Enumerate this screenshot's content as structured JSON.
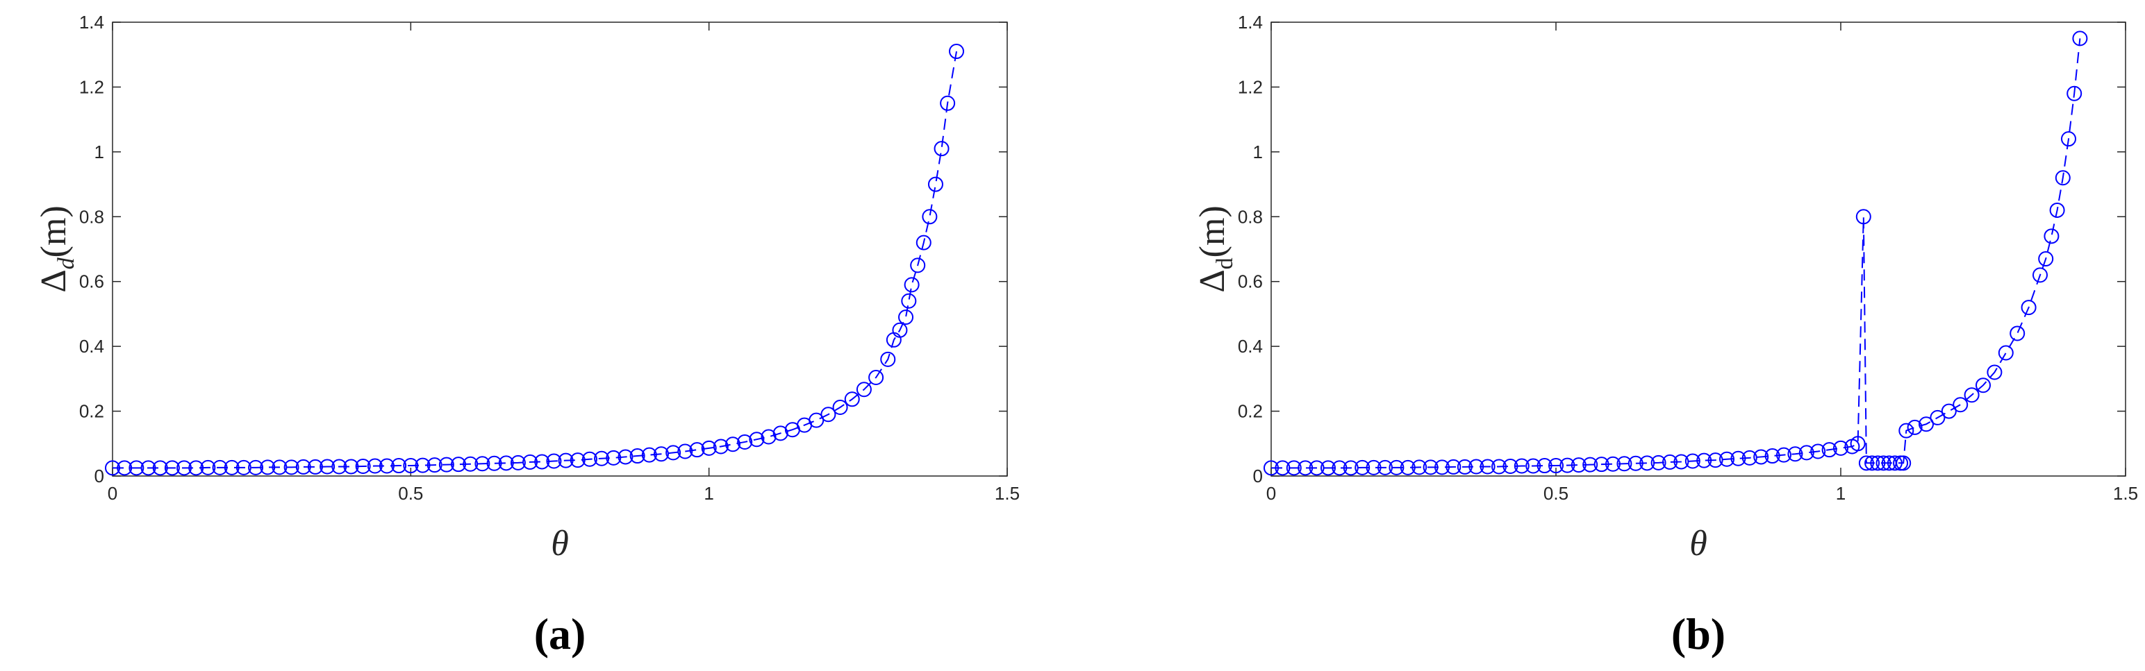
{
  "chart_data": [
    {
      "type": "line",
      "color": "#0000ff",
      "line_style": "dashed",
      "marker": "circle",
      "xlabel": "θ",
      "ylabel": [
        "Δ",
        "d",
        "(m)"
      ],
      "caption": "(a)",
      "xlim": [
        0,
        1.5
      ],
      "ylim": [
        0,
        1.4
      ],
      "xticks": [
        0,
        0.5,
        1,
        1.5
      ],
      "yticks": [
        0,
        0.2,
        0.4,
        0.6,
        0.8,
        1,
        1.2,
        1.4
      ],
      "x": [
        0,
        0.02,
        0.04,
        0.06,
        0.08,
        0.1,
        0.12,
        0.14,
        0.16,
        0.18,
        0.2,
        0.22,
        0.24,
        0.26,
        0.28,
        0.3,
        0.32,
        0.34,
        0.36,
        0.38,
        0.4,
        0.42,
        0.44,
        0.46,
        0.48,
        0.5,
        0.52,
        0.54,
        0.56,
        0.58,
        0.6,
        0.62,
        0.64,
        0.66,
        0.68,
        0.7,
        0.72,
        0.74,
        0.76,
        0.78,
        0.8,
        0.82,
        0.84,
        0.86,
        0.88,
        0.9,
        0.92,
        0.94,
        0.96,
        0.98,
        1,
        1.02,
        1.04,
        1.06,
        1.08,
        1.1,
        1.12,
        1.14,
        1.16,
        1.18,
        1.2,
        1.22,
        1.24,
        1.26,
        1.28,
        1.3,
        1.31,
        1.32,
        1.33,
        1.335,
        1.34,
        1.35,
        1.36,
        1.37,
        1.38,
        1.39,
        1.4,
        1.415
      ],
      "values": [
        0.025,
        0.025,
        0.025,
        0.025,
        0.025,
        0.025,
        0.025,
        0.025,
        0.026,
        0.026,
        0.026,
        0.026,
        0.026,
        0.027,
        0.027,
        0.027,
        0.028,
        0.028,
        0.029,
        0.029,
        0.029,
        0.03,
        0.031,
        0.031,
        0.032,
        0.032,
        0.033,
        0.034,
        0.035,
        0.036,
        0.037,
        0.038,
        0.039,
        0.04,
        0.041,
        0.043,
        0.044,
        0.046,
        0.048,
        0.049,
        0.052,
        0.054,
        0.056,
        0.059,
        0.062,
        0.065,
        0.068,
        0.072,
        0.076,
        0.081,
        0.086,
        0.091,
        0.098,
        0.105,
        0.113,
        0.121,
        0.132,
        0.143,
        0.157,
        0.172,
        0.19,
        0.212,
        0.237,
        0.267,
        0.304,
        0.36,
        0.42,
        0.45,
        0.49,
        0.54,
        0.59,
        0.65,
        0.72,
        0.8,
        0.9,
        1.01,
        1.15,
        1.31
      ]
    },
    {
      "type": "line",
      "color": "#0000ff",
      "line_style": "dashed",
      "marker": "circle",
      "xlabel": "θ",
      "ylabel": [
        "Δ",
        "d",
        "(m)"
      ],
      "caption": "(b)",
      "xlim": [
        0,
        1.5
      ],
      "ylim": [
        0,
        1.4
      ],
      "xticks": [
        0,
        0.5,
        1,
        1.5
      ],
      "yticks": [
        0,
        0.2,
        0.4,
        0.6,
        0.8,
        1,
        1.2,
        1.4
      ],
      "x": [
        0,
        0.02,
        0.04,
        0.06,
        0.08,
        0.1,
        0.12,
        0.14,
        0.16,
        0.18,
        0.2,
        0.22,
        0.24,
        0.26,
        0.28,
        0.3,
        0.32,
        0.34,
        0.36,
        0.38,
        0.4,
        0.42,
        0.44,
        0.46,
        0.48,
        0.5,
        0.52,
        0.54,
        0.56,
        0.58,
        0.6,
        0.62,
        0.64,
        0.66,
        0.68,
        0.7,
        0.72,
        0.74,
        0.76,
        0.78,
        0.8,
        0.82,
        0.84,
        0.86,
        0.88,
        0.9,
        0.92,
        0.94,
        0.96,
        0.98,
        1,
        1.02,
        1.03,
        1.04,
        1.045,
        1.055,
        1.065,
        1.075,
        1.085,
        1.095,
        1.105,
        1.11,
        1.115,
        1.13,
        1.15,
        1.17,
        1.19,
        1.21,
        1.23,
        1.25,
        1.27,
        1.29,
        1.31,
        1.33,
        1.35,
        1.36,
        1.37,
        1.38,
        1.39,
        1.4,
        1.41,
        1.42
      ],
      "values": [
        0.025,
        0.025,
        0.025,
        0.025,
        0.025,
        0.025,
        0.025,
        0.025,
        0.026,
        0.026,
        0.026,
        0.026,
        0.026,
        0.027,
        0.027,
        0.027,
        0.028,
        0.028,
        0.029,
        0.029,
        0.029,
        0.03,
        0.031,
        0.031,
        0.032,
        0.032,
        0.033,
        0.034,
        0.035,
        0.036,
        0.037,
        0.038,
        0.039,
        0.04,
        0.041,
        0.043,
        0.044,
        0.046,
        0.048,
        0.049,
        0.052,
        0.054,
        0.056,
        0.059,
        0.062,
        0.065,
        0.068,
        0.072,
        0.076,
        0.081,
        0.086,
        0.091,
        0.1,
        0.8,
        0.04,
        0.04,
        0.04,
        0.04,
        0.04,
        0.04,
        0.04,
        0.04,
        0.14,
        0.15,
        0.16,
        0.18,
        0.2,
        0.22,
        0.25,
        0.28,
        0.32,
        0.38,
        0.44,
        0.52,
        0.62,
        0.67,
        0.74,
        0.82,
        0.92,
        1.04,
        1.18,
        1.35
      ]
    }
  ]
}
